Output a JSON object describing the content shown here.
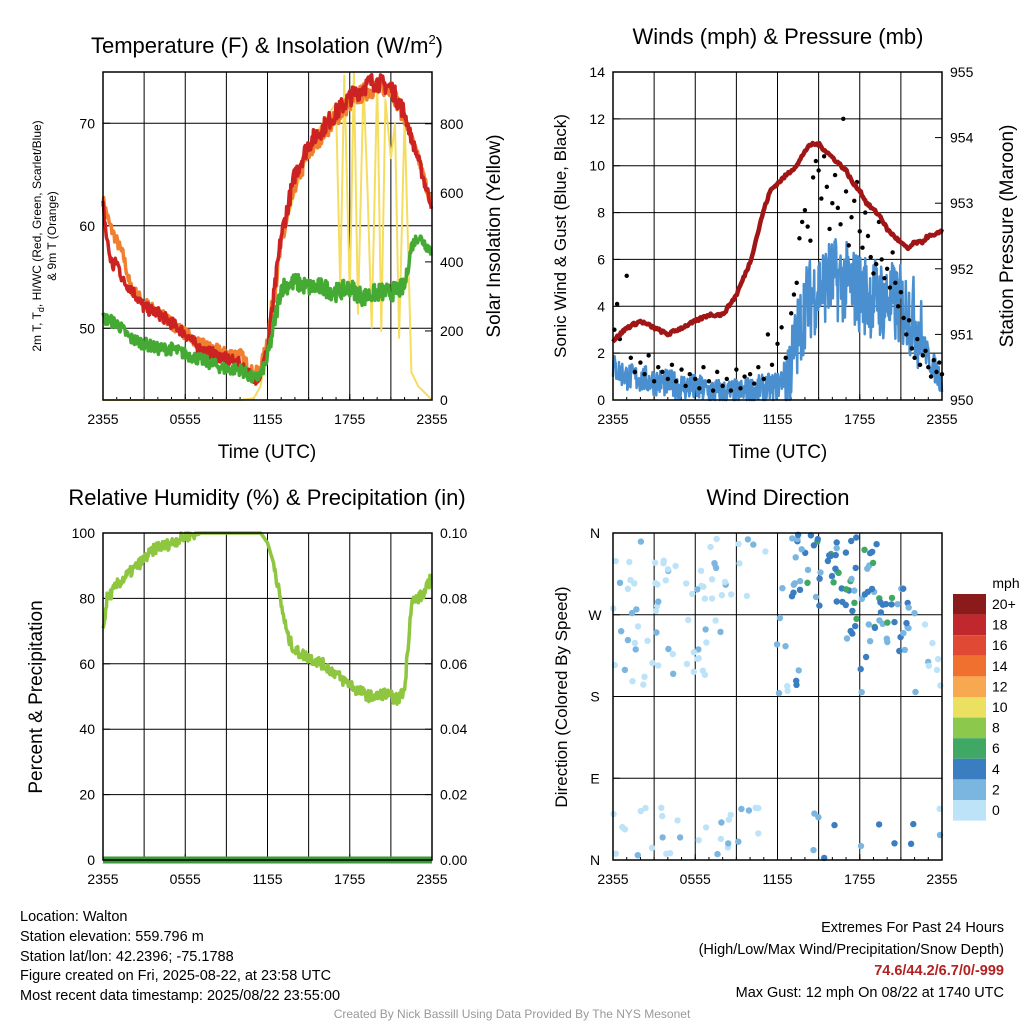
{
  "chart_data": [
    {
      "type": "line",
      "title": "Temperature (F) & Insolation (W/m",
      "title_sup": "2",
      "title_end": ")",
      "xlabel": "Time (UTC)",
      "ylabel_left_lines": [
        "2m T, T",
        "d",
        ", HI/WC (Red, Green, Scarlet/Blue)",
        "& 9m T (Orange)"
      ],
      "ylabel_right": "Solar Insolation (Yellow)",
      "x_ticks": [
        "2355",
        "0555",
        "1155",
        "1755",
        "2355"
      ],
      "ylim_left": [
        43,
        75
      ],
      "y_ticks_left": [
        50,
        60,
        70
      ],
      "ylim_right": [
        0,
        950
      ],
      "y_ticks_right": [
        0,
        200,
        400,
        600,
        800
      ],
      "grid": true,
      "series": [
        {
          "color": "#cc2222",
          "axis": "left",
          "x": [
            0,
            0.25,
            0.5,
            0.75,
            1,
            1.5,
            2,
            3,
            4,
            5,
            6,
            7,
            8,
            9,
            10,
            11,
            11.5,
            12,
            13,
            14,
            15,
            16,
            17,
            18,
            19,
            19.5,
            20,
            21,
            22,
            22.5,
            23,
            23.5,
            24
          ],
          "y": [
            62,
            59,
            57,
            56,
            56.5,
            54.5,
            54,
            52,
            51.5,
            50.5,
            49.5,
            48,
            47.5,
            47,
            46.5,
            45,
            45.5,
            48,
            59,
            65,
            68,
            69.5,
            71,
            72.5,
            73.5,
            74,
            74,
            73.5,
            71,
            68.5,
            66.5,
            64,
            62
          ]
        },
        {
          "color": "#f08030",
          "axis": "left",
          "x": [
            0,
            0.5,
            1,
            1.5,
            2,
            3,
            4,
            5,
            6,
            7,
            8,
            9,
            10,
            11,
            11.5,
            12,
            13,
            14,
            15,
            16,
            17,
            18,
            19,
            20,
            21,
            22,
            23,
            24
          ],
          "y": [
            62.5,
            60,
            58.5,
            57,
            54,
            52.5,
            51.5,
            50.5,
            49.5,
            48.5,
            48,
            47.5,
            47.5,
            45.5,
            46,
            49,
            58,
            64,
            67,
            69,
            70.5,
            72,
            73,
            73.5,
            73.5,
            70.5,
            66.5,
            62
          ]
        },
        {
          "color": "#44aa33",
          "axis": "left",
          "x": [
            0,
            1,
            2,
            3,
            4,
            5,
            6,
            7,
            8,
            9,
            10,
            11,
            11.5,
            12,
            13,
            14,
            15,
            16,
            17,
            18,
            19,
            20,
            21,
            22,
            22.5,
            23,
            24
          ],
          "y": [
            51,
            50.5,
            49,
            48.5,
            48,
            48,
            47.5,
            47,
            46.5,
            46,
            46,
            45,
            45.5,
            47,
            54,
            54.5,
            54,
            54,
            53.5,
            54,
            53,
            53.5,
            53.5,
            54,
            58,
            59,
            57.5
          ]
        },
        {
          "color": "#f5dd60",
          "axis": "right",
          "x": [
            0,
            4,
            8,
            10,
            11,
            11.5,
            12,
            12.5,
            13,
            14,
            15,
            15.5,
            16,
            16.5,
            17,
            17.3,
            17.6,
            18,
            18.3,
            18.6,
            19,
            19.3,
            19.6,
            20,
            20.3,
            20.6,
            21,
            21.3,
            21.6,
            22,
            22.5,
            23,
            24
          ],
          "y": [
            0,
            0,
            0,
            0,
            5,
            40,
            160,
            330,
            460,
            600,
            720,
            770,
            800,
            830,
            860,
            330,
            940,
            300,
            950,
            250,
            920,
            600,
            210,
            930,
            200,
            870,
            700,
            800,
            180,
            820,
            80,
            40,
            0
          ]
        }
      ]
    },
    {
      "type": "scatter",
      "title": "Winds (mph) & Pressure (mb)",
      "xlabel": "Time (UTC)",
      "ylabel_left": "Sonic Wind & Gust (Blue, Black)",
      "ylabel_right": "Station Pressure (Maroon)",
      "x_ticks": [
        "2355",
        "0555",
        "1155",
        "1755",
        "2355"
      ],
      "ylim_left": [
        0,
        14
      ],
      "y_ticks_left": [
        0,
        2,
        4,
        6,
        8,
        10,
        12,
        14
      ],
      "ylim_right": [
        950,
        955
      ],
      "y_ticks_right": [
        950,
        951,
        952,
        953,
        954,
        955
      ],
      "grid": true,
      "series": [
        {
          "color": "#4a90d0",
          "kind": "line",
          "axis": "left",
          "x": [
            0,
            1,
            2,
            3,
            4,
            5,
            6,
            7,
            8,
            9,
            10,
            11,
            12,
            13,
            14,
            15,
            16,
            17,
            18,
            19,
            20,
            21,
            22,
            23,
            24
          ],
          "y": [
            1.4,
            1.0,
            0.9,
            0.8,
            0.7,
            0.6,
            0.5,
            0.4,
            0.3,
            0.3,
            0.4,
            0.5,
            0.6,
            1.5,
            4.0,
            4.8,
            5.2,
            5.0,
            4.6,
            4.4,
            4.2,
            4.0,
            3.5,
            1.8,
            0.8
          ]
        },
        {
          "color": "#000000",
          "kind": "scatter",
          "axis": "left",
          "x": [
            0.1,
            0.3,
            0.5,
            0.8,
            1,
            1.3,
            1.6,
            2,
            2.3,
            2.6,
            3,
            3.3,
            3.6,
            4,
            4.3,
            4.6,
            5,
            5.3,
            5.6,
            6,
            6.3,
            6.6,
            7,
            7.3,
            7.6,
            8,
            8.3,
            8.6,
            9,
            9.3,
            9.6,
            10,
            10.3,
            10.6,
            11,
            11.3,
            11.6,
            12,
            12.3,
            12.6,
            13,
            13.2,
            13.4,
            13.6,
            13.8,
            14,
            14.2,
            14.4,
            14.6,
            14.8,
            15,
            15.2,
            15.4,
            15.6,
            15.8,
            16,
            16.2,
            16.4,
            16.6,
            16.8,
            17,
            17.2,
            17.4,
            17.6,
            17.8,
            18,
            18.2,
            18.4,
            18.6,
            18.8,
            19,
            19.2,
            19.4,
            19.6,
            19.8,
            20,
            20.2,
            20.4,
            20.6,
            20.8,
            21,
            21.2,
            21.4,
            21.6,
            21.8,
            22,
            22.2,
            22.4,
            22.6,
            22.8,
            23,
            23.2,
            23.4,
            23.6,
            23.8,
            24
          ],
          "y": [
            3.0,
            4.1,
            2.6,
            3.0,
            5.3,
            1.8,
            1.2,
            1.6,
            1.1,
            1.9,
            0.8,
            1.4,
            1.2,
            0.9,
            1.5,
            0.8,
            1.3,
            0.6,
            1.1,
            0.9,
            0.5,
            1.4,
            0.8,
            0.4,
            1.2,
            0.6,
            0.9,
            0.4,
            1.3,
            0.5,
            1.0,
            1.1,
            0.7,
            1.4,
            0.9,
            2.8,
            1.5,
            2.4,
            3.1,
            1.8,
            3.7,
            4.5,
            5.0,
            6.9,
            7.6,
            8.1,
            7.4,
            6.8,
            9.5,
            10.2,
            9.8,
            8.6,
            10.4,
            9.1,
            7.3,
            8.4,
            9.6,
            8.2,
            7.5,
            12.0,
            8.9,
            6.6,
            7.8,
            8.5,
            9.3,
            7.2,
            6.5,
            8.0,
            7.0,
            6.1,
            5.4,
            5.8,
            7.6,
            6.0,
            5.2,
            5.6,
            4.8,
            6.3,
            5.0,
            4.0,
            4.6,
            3.5,
            2.8,
            3.4,
            2.2,
            1.8,
            2.6,
            1.5,
            1.9,
            2.1,
            1.4,
            1.0,
            1.7,
            1.2,
            1.6,
            1.1
          ]
        },
        {
          "color": "#a01515",
          "kind": "line",
          "axis": "right",
          "x": [
            0,
            0.5,
            1,
            2,
            3,
            4,
            5,
            6,
            7,
            8,
            9,
            10,
            10.5,
            11,
            11.5,
            12,
            12.5,
            13,
            13.5,
            14,
            14.5,
            15,
            15.5,
            16,
            16.5,
            17,
            17.5,
            18,
            18.5,
            19,
            19.5,
            20,
            20.5,
            21,
            21.5,
            22,
            22.5,
            23,
            23.5,
            24
          ],
          "y": [
            950.9,
            951.0,
            951.1,
            951.2,
            951.1,
            951.0,
            951.1,
            951.2,
            951.3,
            951.3,
            951.6,
            952.1,
            952.5,
            952.9,
            953.2,
            953.3,
            953.4,
            953.5,
            953.6,
            953.8,
            953.9,
            953.9,
            953.8,
            953.7,
            953.6,
            953.5,
            953.3,
            953.2,
            953.0,
            952.9,
            952.8,
            952.6,
            952.5,
            952.4,
            952.3,
            952.4,
            952.4,
            952.5,
            952.5,
            952.6
          ]
        }
      ]
    },
    {
      "type": "line",
      "title": "Relative Humidity (%) & Precipitation (in)",
      "ylabel_left": "Percent & Precipitation",
      "x_ticks": [
        "2355",
        "0555",
        "1155",
        "1755",
        "2355"
      ],
      "ylim_left": [
        0,
        100
      ],
      "y_ticks_left": [
        0,
        20,
        40,
        60,
        80,
        100
      ],
      "ylim_right": [
        0,
        0.1
      ],
      "y_ticks_right": [
        "0.00",
        "0.02",
        "0.04",
        "0.06",
        "0.08",
        "0.10"
      ],
      "grid": true,
      "series": [
        {
          "color": "#8ec63f",
          "axis": "left",
          "x": [
            0,
            0.3,
            0.7,
            1,
            1.5,
            2,
            2.5,
            3,
            3.5,
            4,
            4.5,
            5,
            5.5,
            6,
            7,
            8,
            9,
            10,
            11,
            11.5,
            12,
            12.5,
            13,
            13.5,
            14,
            15,
            16,
            17,
            17.5,
            18,
            18.5,
            19,
            19.5,
            20,
            20.5,
            21,
            21.5,
            22,
            22.5,
            23,
            23.5,
            24
          ],
          "y": [
            70,
            80,
            82,
            84,
            86,
            88,
            90,
            92,
            94,
            96,
            96,
            97,
            98,
            99,
            100,
            100,
            100,
            100,
            100,
            100,
            97,
            90,
            78,
            68,
            64,
            62,
            60,
            57,
            55,
            54,
            52,
            51,
            50,
            50,
            51,
            50,
            49,
            52,
            79,
            80,
            82,
            87
          ]
        },
        {
          "color": "#3a9a3a",
          "axis": "left",
          "x": [
            0,
            24
          ],
          "y": [
            0,
            0
          ]
        }
      ]
    },
    {
      "type": "scatter",
      "title": "Wind Direction",
      "ylabel_left": "Direction (Colored By Speed)",
      "x_ticks": [
        "2355",
        "0555",
        "1155",
        "1755",
        "2355"
      ],
      "y_tick_labels": [
        "N",
        "E",
        "S",
        "W",
        "N"
      ],
      "ylim_left": [
        0,
        360
      ],
      "grid": true,
      "legend": {
        "title": "mph",
        "placement": "right",
        "labels": [
          "20+",
          "18",
          "16",
          "14",
          "12",
          "10",
          "8",
          "6",
          "4",
          "2",
          "0"
        ],
        "colors": [
          "#8b1a1a",
          "#c0282d",
          "#e04a34",
          "#f0702f",
          "#f8a850",
          "#ece060",
          "#8cc84c",
          "#3ea864",
          "#3a7dc0",
          "#7ab6e0",
          "#bde3f8"
        ]
      },
      "points_note": "speed buckets: 0 light, 2 mid-light, 4 blue, 6 green"
    }
  ],
  "footer": {
    "location": "Location: Walton",
    "elevation": "Station elevation: 559.796 m",
    "latlon": "Station lat/lon: 42.2396; -75.1788",
    "created": "Figure created on Fri, 2025-08-22, at 23:58 UTC",
    "recent": "Most recent data timestamp: 2025/08/22 23:55:00",
    "extremes_title": "Extremes For Past 24 Hours",
    "extremes_desc": "(High/Low/Max Wind/Precipitation/Snow Depth)",
    "extremes_values": "74.6/44.2/6.7/0/-999",
    "max_gust": "Max Gust: 12 mph On 08/22 at 1740 UTC",
    "credit": "Created By Nick Bassill Using Data Provided By The NYS Mesonet"
  }
}
